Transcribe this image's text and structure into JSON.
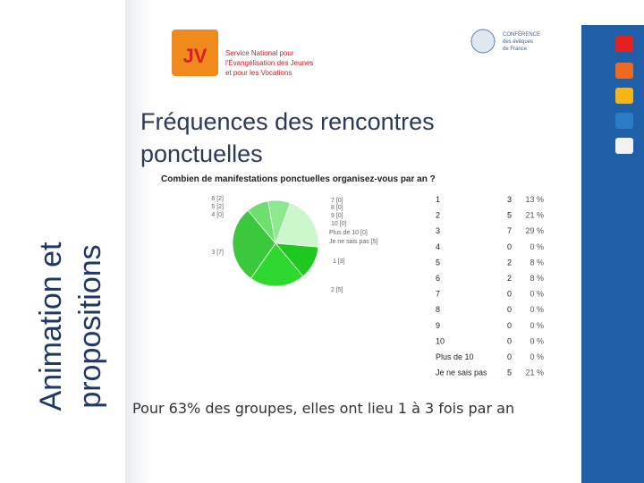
{
  "side_title": [
    "Animation et",
    "propositions"
  ],
  "header": {
    "logo_left": "JV",
    "logo_left_text": [
      "Service National pour",
      "l'Évangélisation des Jeunes",
      "et pour les Vocations"
    ],
    "logo_right_text": [
      "CONFÉRENCE",
      "des évêques",
      "de France"
    ]
  },
  "title": "Fréquences des rencontres ponctuelles",
  "chart_data": {
    "type": "pie",
    "title": "Combien de manifestations ponctuelles organisez-vous par an ?",
    "categories": [
      "1",
      "2",
      "3",
      "4",
      "5",
      "6",
      "7",
      "8",
      "9",
      "10",
      "Plus de 10",
      "Je ne sais pas"
    ],
    "values": [
      3,
      5,
      7,
      0,
      2,
      2,
      0,
      0,
      0,
      0,
      0,
      5
    ],
    "slice_labels": [
      "1 [3]",
      "2 [5]",
      "3 [7]",
      "4 [0]",
      "5 [2]",
      "6 [2]",
      "7 [0]",
      "8 [0]",
      "9 [0]",
      "10 [0]",
      "Plus de 10 [0]",
      "Je ne sais pas [5]"
    ],
    "percents": [
      13,
      21,
      29,
      0,
      8,
      8,
      0,
      0,
      0,
      0,
      0,
      21
    ],
    "percent_labels": [
      "13 %",
      "21 %",
      "29 %",
      "0 %",
      "8 %",
      "8 %",
      "0 %",
      "0 %",
      "0 %",
      "0 %",
      "0 %",
      "21 %"
    ],
    "colors": [
      "#1ec81e",
      "#2fd82f",
      "#3cc83c",
      "#55d055",
      "#6ede6e",
      "#8ee88e",
      "#a0eea0",
      "#a8f0a8",
      "#b0f0b0",
      "#b8f2b8",
      "#c0f4c0",
      "#ccf6cc"
    ]
  },
  "footer_text": "Pour 63% des groupes, elles ont lieu 1 à 3 fois par an"
}
